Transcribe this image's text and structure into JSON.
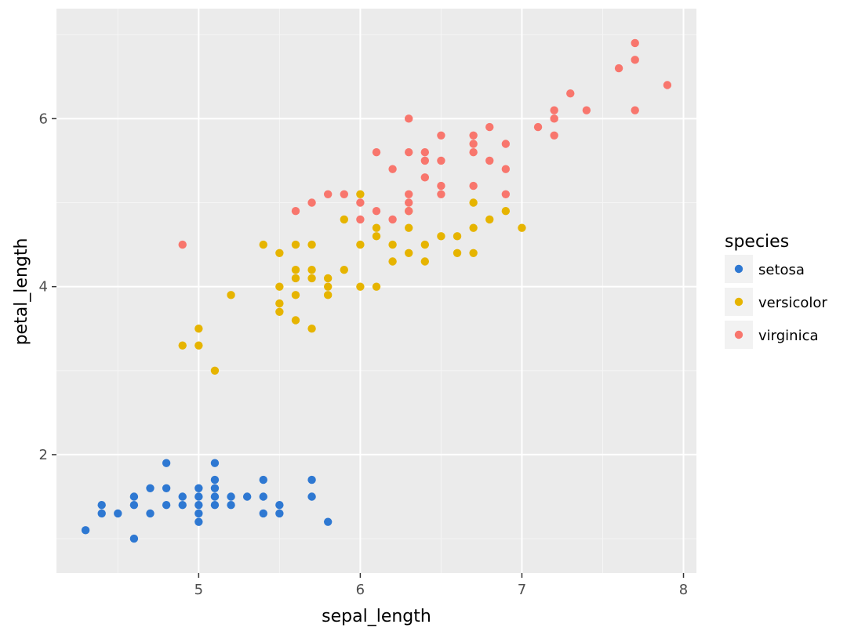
{
  "chart_data": {
    "type": "scatter",
    "xlabel": "sepal_length",
    "ylabel": "petal_length",
    "xlim": [
      4.12,
      8.08
    ],
    "ylim": [
      0.59,
      7.31
    ],
    "x_ticks": [
      5,
      6,
      7,
      8
    ],
    "y_ticks": [
      2,
      4,
      6
    ],
    "x_tick_labels": [
      "5",
      "6",
      "7",
      "8"
    ],
    "y_tick_labels": [
      "2",
      "4",
      "6"
    ],
    "grid": true,
    "legend": {
      "title": "species",
      "placement": "right"
    },
    "series": [
      {
        "name": "setosa",
        "color": "#2e78d2",
        "points": [
          [
            4.3,
            1.1
          ],
          [
            4.4,
            1.3
          ],
          [
            4.4,
            1.4
          ],
          [
            4.5,
            1.3
          ],
          [
            4.6,
            1.0
          ],
          [
            4.6,
            1.4
          ],
          [
            4.6,
            1.5
          ],
          [
            4.7,
            1.3
          ],
          [
            4.7,
            1.6
          ],
          [
            4.8,
            1.4
          ],
          [
            4.8,
            1.6
          ],
          [
            4.8,
            1.9
          ],
          [
            4.9,
            1.4
          ],
          [
            4.9,
            1.5
          ],
          [
            5.0,
            1.2
          ],
          [
            5.0,
            1.3
          ],
          [
            5.0,
            1.4
          ],
          [
            5.0,
            1.5
          ],
          [
            5.0,
            1.6
          ],
          [
            5.1,
            1.4
          ],
          [
            5.1,
            1.5
          ],
          [
            5.1,
            1.6
          ],
          [
            5.1,
            1.7
          ],
          [
            5.1,
            1.9
          ],
          [
            5.2,
            1.4
          ],
          [
            5.2,
            1.5
          ],
          [
            5.3,
            1.5
          ],
          [
            5.4,
            1.3
          ],
          [
            5.4,
            1.5
          ],
          [
            5.4,
            1.7
          ],
          [
            5.5,
            1.3
          ],
          [
            5.5,
            1.4
          ],
          [
            5.7,
            1.5
          ],
          [
            5.7,
            1.7
          ],
          [
            5.8,
            1.2
          ]
        ]
      },
      {
        "name": "versicolor",
        "color": "#e6b400",
        "points": [
          [
            4.9,
            3.3
          ],
          [
            5.0,
            3.3
          ],
          [
            5.0,
            3.5
          ],
          [
            5.1,
            3.0
          ],
          [
            5.2,
            3.9
          ],
          [
            5.4,
            4.5
          ],
          [
            5.5,
            3.7
          ],
          [
            5.5,
            3.8
          ],
          [
            5.5,
            4.0
          ],
          [
            5.5,
            4.4
          ],
          [
            5.6,
            3.6
          ],
          [
            5.6,
            3.9
          ],
          [
            5.6,
            4.1
          ],
          [
            5.6,
            4.2
          ],
          [
            5.6,
            4.5
          ],
          [
            5.7,
            3.5
          ],
          [
            5.7,
            4.1
          ],
          [
            5.7,
            4.2
          ],
          [
            5.7,
            4.5
          ],
          [
            5.8,
            3.9
          ],
          [
            5.8,
            4.0
          ],
          [
            5.8,
            4.1
          ],
          [
            5.9,
            4.2
          ],
          [
            5.9,
            4.8
          ],
          [
            6.0,
            4.0
          ],
          [
            6.0,
            4.5
          ],
          [
            6.0,
            5.1
          ],
          [
            6.1,
            4.0
          ],
          [
            6.1,
            4.6
          ],
          [
            6.1,
            4.7
          ],
          [
            6.2,
            4.3
          ],
          [
            6.2,
            4.5
          ],
          [
            6.3,
            4.4
          ],
          [
            6.3,
            4.7
          ],
          [
            6.3,
            4.9
          ],
          [
            6.4,
            4.3
          ],
          [
            6.4,
            4.5
          ],
          [
            6.5,
            4.6
          ],
          [
            6.6,
            4.4
          ],
          [
            6.6,
            4.6
          ],
          [
            6.7,
            4.4
          ],
          [
            6.7,
            4.7
          ],
          [
            6.7,
            5.0
          ],
          [
            6.8,
            4.8
          ],
          [
            6.9,
            4.9
          ],
          [
            7.0,
            4.7
          ]
        ]
      },
      {
        "name": "virginica",
        "color": "#f8766d",
        "points": [
          [
            4.9,
            4.5
          ],
          [
            5.6,
            4.9
          ],
          [
            5.7,
            5.0
          ],
          [
            5.8,
            5.1
          ],
          [
            5.9,
            5.1
          ],
          [
            6.0,
            4.8
          ],
          [
            6.0,
            5.0
          ],
          [
            6.1,
            4.9
          ],
          [
            6.1,
            5.6
          ],
          [
            6.2,
            4.8
          ],
          [
            6.2,
            5.4
          ],
          [
            6.3,
            4.9
          ],
          [
            6.3,
            5.0
          ],
          [
            6.3,
            5.1
          ],
          [
            6.3,
            5.6
          ],
          [
            6.3,
            6.0
          ],
          [
            6.4,
            5.3
          ],
          [
            6.4,
            5.5
          ],
          [
            6.4,
            5.6
          ],
          [
            6.5,
            5.1
          ],
          [
            6.5,
            5.2
          ],
          [
            6.5,
            5.5
          ],
          [
            6.5,
            5.8
          ],
          [
            6.7,
            5.2
          ],
          [
            6.7,
            5.6
          ],
          [
            6.7,
            5.7
          ],
          [
            6.7,
            5.8
          ],
          [
            6.8,
            5.5
          ],
          [
            6.8,
            5.9
          ],
          [
            6.9,
            5.1
          ],
          [
            6.9,
            5.4
          ],
          [
            6.9,
            5.7
          ],
          [
            7.1,
            5.9
          ],
          [
            7.2,
            5.8
          ],
          [
            7.2,
            6.0
          ],
          [
            7.2,
            6.1
          ],
          [
            7.3,
            6.3
          ],
          [
            7.4,
            6.1
          ],
          [
            7.6,
            6.6
          ],
          [
            7.7,
            6.1
          ],
          [
            7.7,
            6.7
          ],
          [
            7.7,
            6.9
          ],
          [
            7.9,
            6.4
          ]
        ]
      }
    ]
  },
  "style": {
    "panel_background": "#ebebeb",
    "grid_major": "#ffffff",
    "grid_minor": "#f5f5f5",
    "tick_color": "#333333"
  }
}
